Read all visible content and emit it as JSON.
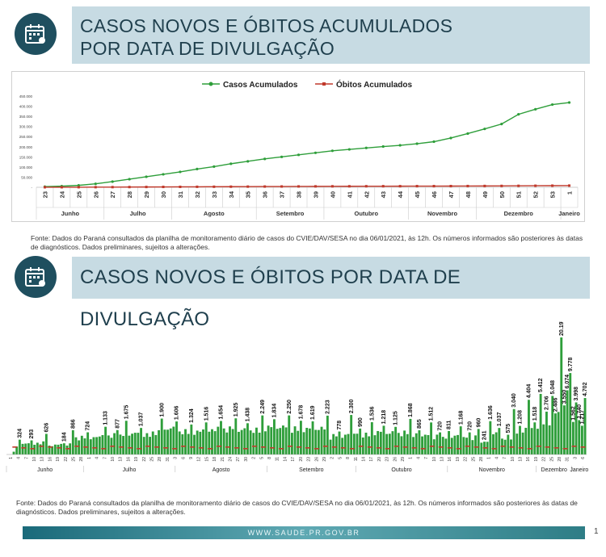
{
  "section1": {
    "title_line1": "CASOS NOVOS E ÓBITOS ACUMULADOS",
    "title_line2": "POR DATA DE DIVULGAÇÃO"
  },
  "section2": {
    "title": "CASOS NOVOS E ÓBITOS POR DATA DE DIVULGAÇÃO"
  },
  "source_text": "Fonte: Dados do Paraná consultados da planilha de monitoramento diário de casos do CVIE/DAV/SESA no dia 06/01/2021, às 12h. Os números informados são posteriores às datas de diagnósticos. Dados preliminares, sujeitos a alterações.",
  "footer": {
    "url": "WWW.SAUDE.PR.GOV.BR",
    "page": "1"
  },
  "colors": {
    "cases": "#2e9e3a",
    "deaths": "#c0392b",
    "title_bg": "#c7dbe3",
    "title_text": "#1f3f4d",
    "icon_bg": "#1f4f5f"
  },
  "icons": {
    "section1": "calendar-virus-icon",
    "section2": "calendar-virus-icon"
  },
  "chart_data": [
    {
      "type": "line",
      "legend": [
        "Casos Acumulados",
        "Óbitos Acumulados"
      ],
      "legend_position": "top-center",
      "yticks": [
        "-",
        "50.000",
        "100.000",
        "150.000",
        "200.000",
        "250.000",
        "300.000",
        "350.000",
        "400.000",
        "450.000"
      ],
      "ylim": [
        0,
        450000
      ],
      "x": [
        "23",
        "24",
        "25",
        "26",
        "27",
        "28",
        "29",
        "30",
        "31",
        "32",
        "33",
        "34",
        "35",
        "36",
        "37",
        "38",
        "39",
        "40",
        "41",
        "42",
        "43",
        "44",
        "45",
        "46",
        "47",
        "48",
        "49",
        "50",
        "51",
        "52",
        "53",
        "1"
      ],
      "months": [
        {
          "label": "Junho",
          "span": [
            0,
            3
          ]
        },
        {
          "label": "Julho",
          "span": [
            4,
            7
          ]
        },
        {
          "label": "Agosto",
          "span": [
            8,
            12
          ]
        },
        {
          "label": "Setembro",
          "span": [
            13,
            16
          ]
        },
        {
          "label": "Outubro",
          "span": [
            17,
            21
          ]
        },
        {
          "label": "Novembro",
          "span": [
            22,
            25
          ]
        },
        {
          "label": "Dezembro",
          "span": [
            26,
            30
          ]
        },
        {
          "label": "Janeiro",
          "span": [
            31,
            31
          ]
        }
      ],
      "series": [
        {
          "name": "Casos Acumulados",
          "values": [
            3000,
            5500,
            9500,
            17000,
            28000,
            40000,
            52000,
            64000,
            76000,
            90000,
            102000,
            116000,
            128000,
            140000,
            150000,
            160000,
            170000,
            180000,
            187000,
            194000,
            201000,
            207000,
            215000,
            225000,
            243000,
            265000,
            288000,
            312000,
            360000,
            385000,
            408000,
            418000
          ]
        },
        {
          "name": "Óbitos Acumulados",
          "values": [
            180,
            260,
            380,
            560,
            820,
            1150,
            1500,
            1800,
            2100,
            2400,
            2700,
            3000,
            3300,
            3600,
            3900,
            4200,
            4500,
            4800,
            5000,
            5200,
            5400,
            5500,
            5700,
            5800,
            6000,
            6200,
            6500,
            6800,
            7200,
            7600,
            8000,
            8300
          ]
        }
      ]
    },
    {
      "type": "bar",
      "bar_count": 196,
      "months": [
        {
          "label": "Junho",
          "span": [
            0,
            25
          ]
        },
        {
          "label": "Julho",
          "span": [
            26,
            56
          ]
        },
        {
          "label": "Agosto",
          "span": [
            57,
            87
          ]
        },
        {
          "label": "Setembro",
          "span": [
            88,
            117
          ]
        },
        {
          "label": "Outubro",
          "span": [
            118,
            148
          ]
        },
        {
          "label": "Novembro",
          "span": [
            149,
            178
          ]
        },
        {
          "label": "Dezembro",
          "span": [
            179,
            190
          ]
        },
        {
          "label": "Janeiro",
          "span": [
            191,
            195
          ]
        }
      ],
      "day_ticks": [
        "1",
        "4",
        "7",
        "10",
        "13",
        "16",
        "19",
        "22",
        "25",
        "28",
        "1",
        "4",
        "7",
        "10",
        "13",
        "16",
        "19",
        "22",
        "25",
        "28",
        "31",
        "3",
        "6",
        "9",
        "12",
        "15",
        "18",
        "21",
        "24",
        "27",
        "30",
        "2",
        "5",
        "8",
        "11",
        "14",
        "17",
        "20",
        "23",
        "26",
        "29",
        "2",
        "5",
        "8",
        "11",
        "14",
        "17",
        "20",
        "23",
        "26",
        "29",
        "1",
        "4",
        "7",
        "10",
        "13",
        "16",
        "19",
        "22",
        "25",
        "28",
        "1",
        "4",
        "7",
        "10",
        "13",
        "16",
        "19",
        "22",
        "25",
        "28",
        "31",
        "3",
        "6"
      ],
      "case_labels": [
        {
          "i": 4,
          "value": 324
        },
        {
          "i": 8,
          "value": 293
        },
        {
          "i": 13,
          "value": 626
        },
        {
          "i": 19,
          "value": 184
        },
        {
          "i": 22,
          "value": 866
        },
        {
          "i": 27,
          "value": 724
        },
        {
          "i": 33,
          "value": 1133
        },
        {
          "i": 37,
          "value": 877
        },
        {
          "i": 40,
          "value": 1675
        },
        {
          "i": 45,
          "value": 1037
        },
        {
          "i": 52,
          "value": 1900
        },
        {
          "i": 57,
          "value": 1606
        },
        {
          "i": 62,
          "value": 1324
        },
        {
          "i": 67,
          "value": 1516
        },
        {
          "i": 72,
          "value": 1654
        },
        {
          "i": 77,
          "value": 1925
        },
        {
          "i": 81,
          "value": 1438
        },
        {
          "i": 86,
          "value": 2249
        },
        {
          "i": 90,
          "value": 1834
        },
        {
          "i": 95,
          "value": 2250
        },
        {
          "i": 99,
          "value": 1678
        },
        {
          "i": 103,
          "value": 1619
        },
        {
          "i": 108,
          "value": 2223
        },
        {
          "i": 112,
          "value": 778
        },
        {
          "i": 116,
          "value": 2300
        },
        {
          "i": 119,
          "value": 990
        },
        {
          "i": 123,
          "value": 1536
        },
        {
          "i": 127,
          "value": 1218
        },
        {
          "i": 131,
          "value": 1125
        },
        {
          "i": 136,
          "value": 1868
        },
        {
          "i": 139,
          "value": 865
        },
        {
          "i": 143,
          "value": 1512
        },
        {
          "i": 146,
          "value": 720
        },
        {
          "i": 149,
          "value": 811
        },
        {
          "i": 153,
          "value": 1168
        },
        {
          "i": 156,
          "value": 720
        },
        {
          "i": 159,
          "value": 960
        },
        {
          "i": 161,
          "value": 241
        },
        {
          "i": 163,
          "value": 1636
        },
        {
          "i": 166,
          "value": 1037
        },
        {
          "i": 169,
          "value": 575
        },
        {
          "i": 171,
          "value": 3040
        },
        {
          "i": 173,
          "value": 1208
        },
        {
          "i": 176,
          "value": 4404
        },
        {
          "i": 178,
          "value": 1518
        },
        {
          "i": 180,
          "value": 5412
        },
        {
          "i": 182,
          "value": 2706
        },
        {
          "i": 184,
          "value": 5048
        },
        {
          "i": 185,
          "value": 2486
        },
        {
          "i": 187,
          "value": 20197
        },
        {
          "i": 188,
          "value": 3550
        },
        {
          "i": 189,
          "value": 6074
        },
        {
          "i": 190,
          "value": 9778
        },
        {
          "i": 191,
          "value": 1562
        },
        {
          "i": 192,
          "value": 3998
        },
        {
          "i": 193,
          "value": 1740
        },
        {
          "i": 194,
          "value": 1217
        },
        {
          "i": 195,
          "value": 4702
        }
      ],
      "death_labels_note": "small red death counts shown inside bars"
    }
  ]
}
